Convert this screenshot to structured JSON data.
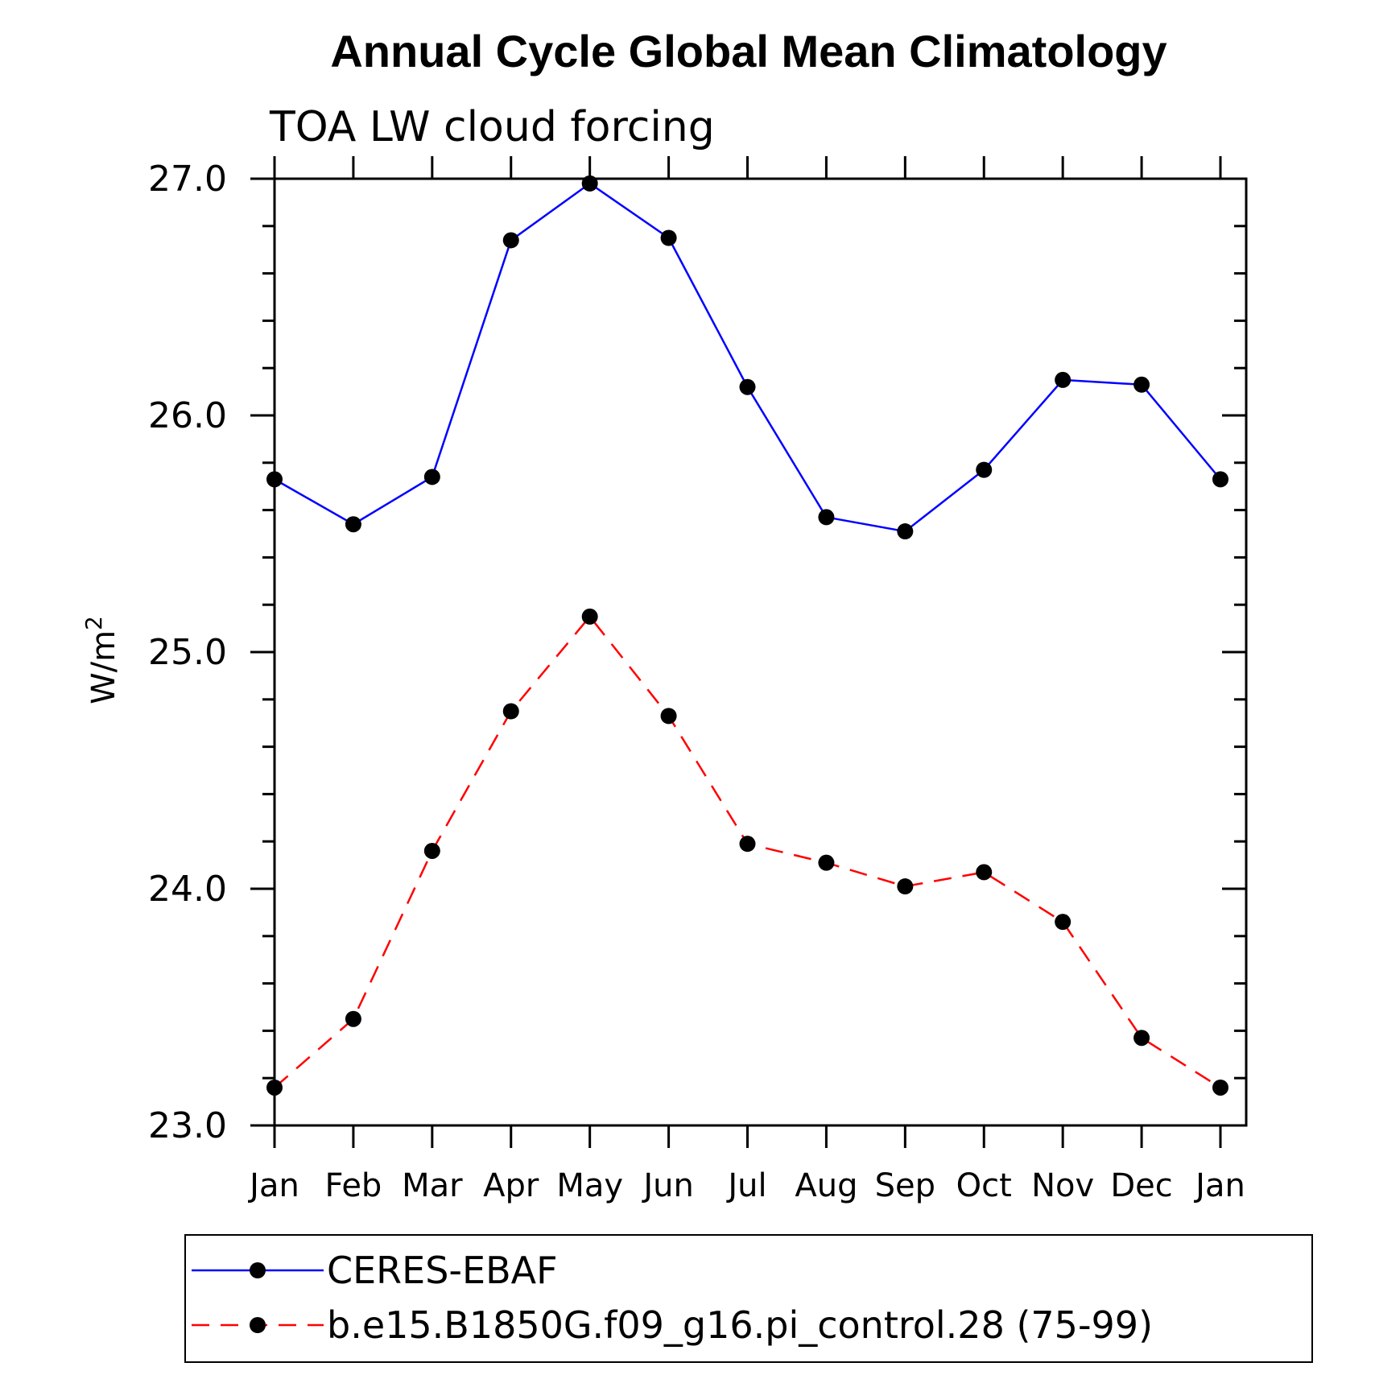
{
  "chart_data": {
    "type": "line",
    "title": "Annual Cycle Global Mean Climatology",
    "subtitle": "TOA LW cloud forcing",
    "ylabel": "W/m",
    "ylabel_superscript": "2",
    "xlabel": "",
    "categories": [
      "Jan",
      "Feb",
      "Mar",
      "Apr",
      "May",
      "Jun",
      "Jul",
      "Aug",
      "Sep",
      "Oct",
      "Nov",
      "Dec",
      "Jan"
    ],
    "ylim": [
      23.0,
      27.0
    ],
    "yticks": [
      23.0,
      24.0,
      25.0,
      26.0,
      27.0
    ],
    "ytick_labels": [
      "23.0",
      "24.0",
      "25.0",
      "26.0",
      "27.0"
    ],
    "grid": false,
    "legend_position": "bottom",
    "series": [
      {
        "name": "CERES-EBAF",
        "color": "#0000ff",
        "dash": "solid",
        "marker": "filled-circle",
        "values": [
          25.73,
          25.54,
          25.74,
          26.74,
          26.98,
          26.75,
          26.12,
          25.57,
          25.51,
          25.77,
          26.15,
          26.13,
          25.73
        ]
      },
      {
        "name": "b.e15.B1850G.f09_g16.pi_control.28 (75-99)",
        "color": "#ff0000",
        "dash": "dashed",
        "marker": "filled-circle",
        "values": [
          23.16,
          23.45,
          24.16,
          24.75,
          25.15,
          24.73,
          24.19,
          24.11,
          24.01,
          24.07,
          23.86,
          23.37,
          23.16
        ]
      }
    ]
  }
}
